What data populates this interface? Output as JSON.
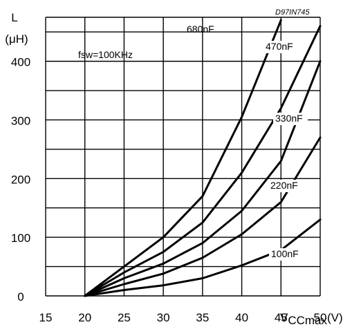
{
  "chart_data": {
    "type": "line",
    "reference_code": "D97IN745",
    "annotation": "fsw=100KHz",
    "ylabel": "L",
    "yunit": "(μH)",
    "xlabel": {
      "main": "V",
      "subscript": "CCmax",
      "unit": "(V)"
    },
    "xlim": [
      15,
      50
    ],
    "ylim": [
      0,
      475
    ],
    "xticks": [
      15,
      20,
      25,
      30,
      35,
      40,
      45,
      50
    ],
    "yticks": [
      0,
      100,
      200,
      300,
      400
    ],
    "grid": true,
    "series": [
      {
        "name": "680nF",
        "x": [
          20,
          25,
          30,
          35,
          40,
          45
        ],
        "y": [
          0,
          50,
          100,
          170,
          305,
          470
        ]
      },
      {
        "name": "470nF",
        "x": [
          20,
          25,
          30,
          35,
          40,
          45,
          50
        ],
        "y": [
          0,
          40,
          75,
          125,
          210,
          320,
          460
        ]
      },
      {
        "name": "330nF",
        "x": [
          20,
          25,
          30,
          35,
          40,
          45,
          50
        ],
        "y": [
          0,
          30,
          55,
          90,
          145,
          230,
          400
        ]
      },
      {
        "name": "220nF",
        "x": [
          20,
          25,
          30,
          35,
          40,
          45,
          50
        ],
        "y": [
          0,
          20,
          38,
          65,
          105,
          160,
          270
        ]
      },
      {
        "name": "100nF",
        "x": [
          20,
          25,
          30,
          35,
          40,
          45,
          50
        ],
        "y": [
          0,
          10,
          18,
          30,
          52,
          78,
          130
        ]
      }
    ]
  }
}
